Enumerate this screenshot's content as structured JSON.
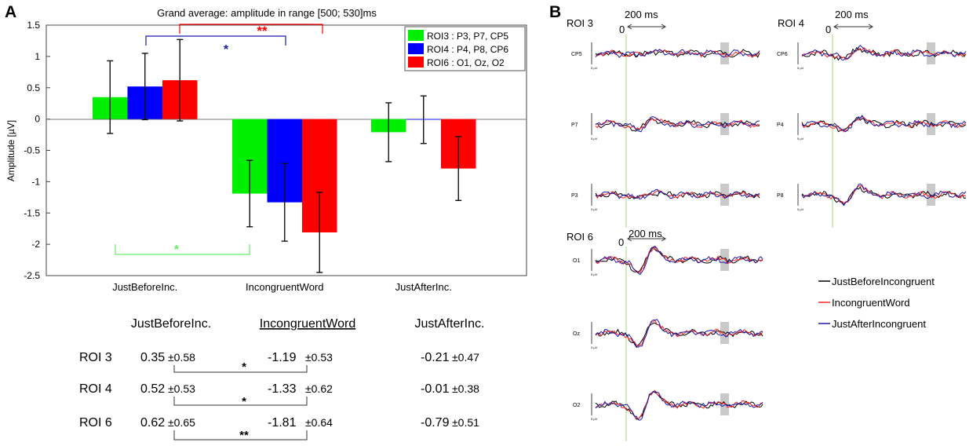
{
  "panels": {
    "a": "A",
    "b": "B"
  },
  "chart_data": {
    "type": "bar",
    "title": "Grand average: amplitude in range [500; 530]ms",
    "ylabel": "Amplitude [µV]",
    "xlabel": "",
    "ylim": [
      -2.5,
      1.5
    ],
    "yticks": [
      "1.5",
      "1",
      "0.5",
      "0",
      "-0.5",
      "-1",
      "-1.5",
      "-2",
      "-2.5"
    ],
    "ytick_values": [
      1.5,
      1,
      0.5,
      0,
      -0.5,
      -1,
      -1.5,
      -2,
      -2.5
    ],
    "categories": [
      "JustBeforeInc.",
      "IncongruentWord",
      "JustAfterInc."
    ],
    "series": [
      {
        "name": "ROI3 : P3, P7, CP5",
        "color": "#00ee00",
        "values": [
          0.35,
          -1.19,
          -0.21
        ],
        "errors": [
          0.58,
          0.53,
          0.47
        ]
      },
      {
        "name": "ROI4 : P4, P8, CP6",
        "color": "#0000ff",
        "values": [
          0.52,
          -1.33,
          -0.01
        ],
        "errors": [
          0.53,
          0.62,
          0.38
        ]
      },
      {
        "name": "ROI6 : O1, Oz, O2",
        "color": "#ff0000",
        "values": [
          0.62,
          -1.81,
          -0.79
        ],
        "errors": [
          0.65,
          0.64,
          0.51
        ]
      }
    ],
    "significance": [
      {
        "label": "**",
        "color": "#ff0000"
      },
      {
        "label": "*",
        "color": "#1a1aaa"
      },
      {
        "label": "*",
        "color": "#66ee66"
      }
    ]
  },
  "table": {
    "headers": [
      "JustBeforeInc.",
      "IncongruentWord",
      "JustAfterInc."
    ],
    "rows": [
      {
        "roi": "ROI 3",
        "before": "0.35",
        "before_sd": "±0.58",
        "inc": "-1.19",
        "inc_sd": "±0.53",
        "after": "-0.21",
        "after_sd": "±0.47",
        "sig": "*"
      },
      {
        "roi": "ROI 4",
        "before": "0.52",
        "before_sd": "±0.53",
        "inc": "-1.33",
        "inc_sd": "±0.62",
        "after": "-0.01",
        "after_sd": "±0.38",
        "sig": "*"
      },
      {
        "roi": "ROI 6",
        "before": "0.62",
        "before_sd": "±0.65",
        "inc": "-1.81",
        "inc_sd": "±0.64",
        "after": "-0.79",
        "after_sd": "±0.51",
        "sig": "**"
      }
    ]
  },
  "erp": {
    "scale_label": "200 ms",
    "zero_label": "0",
    "amp_label": "5 µV",
    "roi_labels": [
      "ROI 3",
      "ROI 4",
      "ROI 6"
    ],
    "electrodes": {
      "roi3": [
        "CP5",
        "P7",
        "P3"
      ],
      "roi4": [
        "CP6",
        "P4",
        "P8"
      ],
      "roi6": [
        "O1",
        "Oz",
        "O2"
      ]
    },
    "legend": [
      {
        "label": "JustBeforeIncongruent",
        "color": "#000000"
      },
      {
        "label": "IncongruentWord",
        "color": "#ff2222"
      },
      {
        "label": "JustAfterIncongruent",
        "color": "#1a1aaa"
      }
    ]
  }
}
